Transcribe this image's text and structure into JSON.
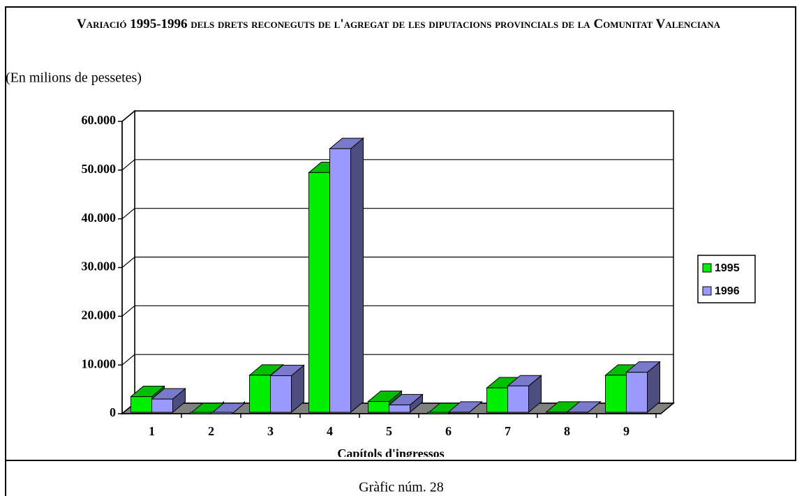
{
  "chart_data": {
    "type": "bar3d",
    "title": "Variació 1995-1996 dels drets reconeguts de l'agregat de les diputacions provincials de la Comunitat Valenciana",
    "subtitle": "(En milions de pessetes)",
    "x_label": "Capítols d'ingressos",
    "caption": "Gràfic núm. 28",
    "categories": [
      "1",
      "2",
      "3",
      "4",
      "5",
      "6",
      "7",
      "8",
      "9"
    ],
    "series": [
      {
        "name": "1995",
        "color": "#00ee00",
        "values": [
          3500,
          0,
          7900,
          49500,
          2500,
          0,
          5300,
          300,
          7900
        ]
      },
      {
        "name": "1996",
        "color": "#9999ff",
        "values": [
          3000,
          0,
          7800,
          54400,
          1800,
          300,
          5700,
          300,
          8500
        ]
      }
    ],
    "ylim": [
      0,
      60000
    ],
    "yticks": [
      0,
      {
        "value": 10000,
        "label": "10.000"
      },
      {
        "value": 20000,
        "label": "20.000"
      },
      {
        "value": 30000,
        "label": "30.000"
      },
      {
        "value": 40000,
        "label": "40.000"
      },
      {
        "value": 50000,
        "label": "50.000"
      },
      {
        "value": 60000,
        "label": "60.000"
      }
    ],
    "grid": true,
    "legend": "right"
  }
}
